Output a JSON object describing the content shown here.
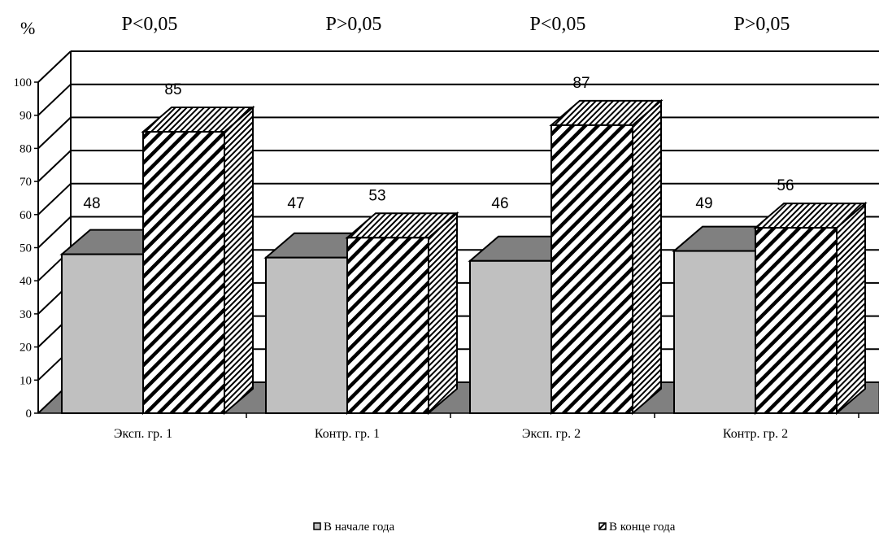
{
  "chart_data": {
    "type": "bar",
    "y_unit": "%",
    "ylim": [
      0,
      100
    ],
    "yticks": [
      0,
      10,
      20,
      30,
      40,
      50,
      60,
      70,
      80,
      90,
      100
    ],
    "grid": true,
    "legend_position": "bottom",
    "categories": [
      "Эксп. гр. 1",
      "Контр. гр. 1",
      "Эксп. гр. 2",
      "Контр. гр. 2"
    ],
    "p_values": [
      "P<0,05",
      "P>0,05",
      "P<0,05",
      "P>0,05"
    ],
    "series": [
      {
        "name": "В начале года",
        "values": [
          48,
          47,
          46,
          49
        ],
        "color": "#c0c0c0",
        "pattern": "solid"
      },
      {
        "name": "В конце года",
        "values": [
          85,
          53,
          87,
          56
        ],
        "color": "#ffffff",
        "pattern": "diagonal-hatch"
      }
    ]
  }
}
